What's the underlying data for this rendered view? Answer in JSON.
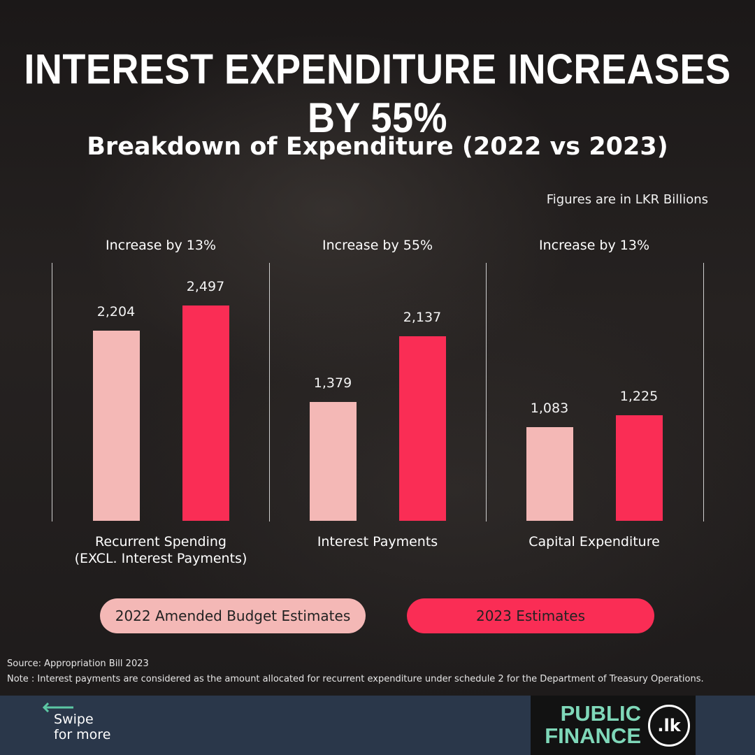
{
  "header": {
    "title": "INTEREST EXPENDITURE INCREASES BY 55%",
    "subtitle": "Breakdown of Expenditure (2022 vs 2023)",
    "units_note": "Figures are in LKR Billions"
  },
  "chart_data": {
    "type": "bar",
    "title": "Breakdown of Expenditure (2022 vs 2023)",
    "ylabel": "",
    "xlabel": "",
    "ylim": [
      0,
      2500
    ],
    "categories": [
      "Recurrent Spending\n(EXCL. Interest Payments)",
      "Interest Payments",
      "Capital Expenditure"
    ],
    "group_headers": [
      "Increase by 13%",
      "Increase by 55%",
      "Increase by 13%"
    ],
    "series": [
      {
        "name": "2022 Amended Budget Estimates",
        "color": "#f4b8b6",
        "values": [
          2204,
          1379,
          1083
        ],
        "labels": [
          "2,204",
          "1,379",
          "1,083"
        ]
      },
      {
        "name": "2023 Estimates",
        "color": "#fa2d55",
        "values": [
          2497,
          2137,
          1225
        ],
        "labels": [
          "2,497",
          "2,137",
          "1,225"
        ]
      }
    ],
    "legend": "bottom"
  },
  "footer": {
    "source": "Source: Appropriation Bill 2023",
    "note": "Note : Interest payments are considered as the amount allocated for recurrent expenditure under schedule 2 for the Department of Treasury Operations.",
    "swipe": "Swipe\nfor more",
    "logo_text": "PUBLIC\nFINANCE",
    "logo_badge": ".lk"
  },
  "colors": {
    "accent_2022": "#f4b8b6",
    "accent_2023": "#fa2d55",
    "footer_bg": "#2a374a",
    "logo_green": "#7fd8b9"
  },
  "icons": {
    "swipe_arrow": "arrow-left-icon"
  }
}
